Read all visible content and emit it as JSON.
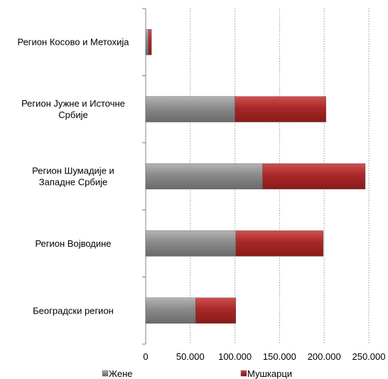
{
  "chart_data": {
    "type": "bar",
    "orientation": "horizontal",
    "stacked": true,
    "categories": [
      [
        "Регион Косово и Метохија"
      ],
      [
        "Регион Јужне и Источне",
        "Србије"
      ],
      [
        "Регион Шумадије и",
        "Западне Србије"
      ],
      [
        "Регион Војводине"
      ],
      [
        "Београдски регион"
      ]
    ],
    "series": [
      {
        "name": "Жене",
        "values": [
          3000,
          100000,
          131000,
          101000,
          56000
        ],
        "color": "#8c8c8c"
      },
      {
        "name": "Мушкарци",
        "values": [
          3500,
          102000,
          115000,
          98000,
          45000
        ],
        "color": "#b03030"
      }
    ],
    "xlim": [
      0,
      250000
    ],
    "xticks": [
      {
        "value": 0,
        "label": "0"
      },
      {
        "value": 50000,
        "label": "50.000"
      },
      {
        "value": 100000,
        "label": "100.000"
      },
      {
        "value": 150000,
        "label": "150.000"
      },
      {
        "value": 200000,
        "label": "200.000"
      },
      {
        "value": 250000,
        "label": "250.000"
      }
    ],
    "grid": true,
    "legend": "bottom"
  }
}
